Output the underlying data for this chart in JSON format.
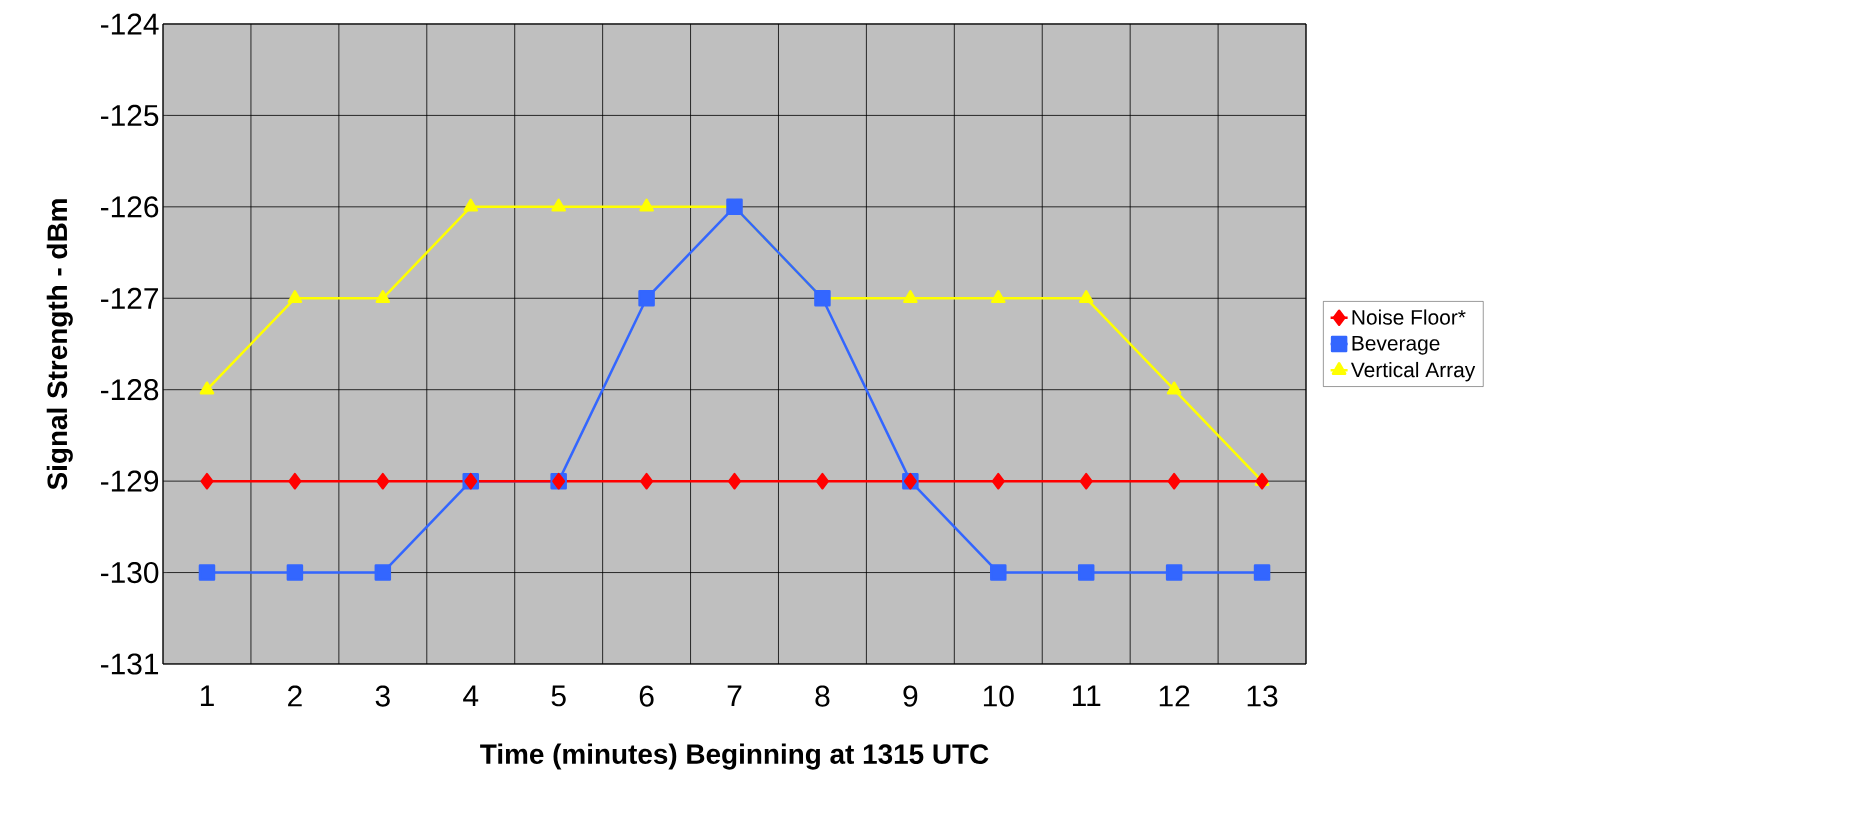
{
  "chart_data": {
    "type": "line",
    "xlabel": "Time (minutes) Beginning at 1315 UTC",
    "ylabel": "Signal Strength - dBm",
    "categories": [
      "1",
      "2",
      "3",
      "4",
      "5",
      "6",
      "7",
      "8",
      "9",
      "10",
      "11",
      "12",
      "13"
    ],
    "series": [
      {
        "name": "Noise Floor*",
        "color": "#ff0000",
        "marker": "diamond",
        "values": [
          -129,
          -129,
          -129,
          -129,
          -129,
          -129,
          -129,
          -129,
          -129,
          -129,
          -129,
          -129,
          -129
        ]
      },
      {
        "name": "Beverage",
        "color": "#3366ff",
        "marker": "square",
        "values": [
          -130,
          -130,
          -130,
          -129,
          -129,
          -127,
          -126,
          -127,
          -129,
          -130,
          -130,
          -130,
          -130
        ]
      },
      {
        "name": "Vertical Array",
        "color": "#ffff00",
        "marker": "triangle",
        "values": [
          -128,
          -127,
          -127,
          -126,
          -126,
          -126,
          -126,
          -127,
          -127,
          -127,
          -127,
          -128,
          -129
        ]
      }
    ],
    "ylim": [
      -131,
      -124
    ],
    "yticks": [
      -131,
      -130,
      -129,
      -128,
      -127,
      -126,
      -125,
      -124
    ],
    "grid": true,
    "legend": "right",
    "line_style": "solid"
  }
}
